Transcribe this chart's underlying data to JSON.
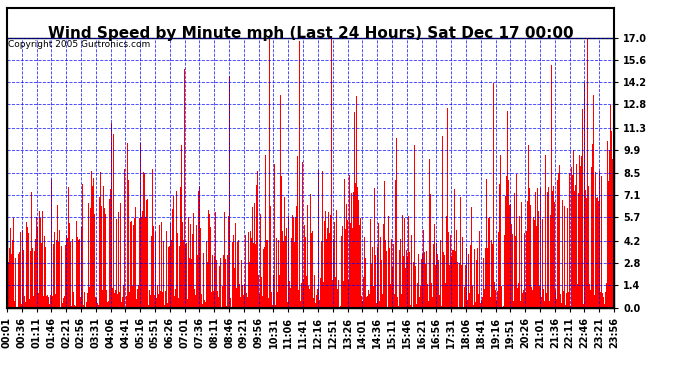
{
  "title": "Wind Speed by Minute mph (Last 24 Hours) Sat Dec 17 00:00",
  "copyright": "Copyright 2005 Gurtronics.com",
  "yticks": [
    0.0,
    1.4,
    2.8,
    4.2,
    5.7,
    7.1,
    8.5,
    9.9,
    11.3,
    12.8,
    14.2,
    15.6,
    17.0
  ],
  "ylim": [
    0.0,
    17.0
  ],
  "xtick_labels": [
    "00:01",
    "00:36",
    "01:11",
    "01:46",
    "02:21",
    "02:56",
    "03:31",
    "04:06",
    "04:41",
    "05:16",
    "05:51",
    "06:26",
    "07:01",
    "07:36",
    "08:11",
    "08:46",
    "09:21",
    "09:56",
    "10:31",
    "11:06",
    "11:41",
    "12:16",
    "12:51",
    "13:26",
    "14:01",
    "14:36",
    "15:11",
    "15:46",
    "16:21",
    "16:56",
    "17:31",
    "18:06",
    "18:41",
    "19:16",
    "19:51",
    "20:26",
    "21:01",
    "21:36",
    "22:11",
    "22:46",
    "23:21",
    "23:56"
  ],
  "bar_color": "#ff0000",
  "bg_color": "#ffffff",
  "grid_color": "#0000ff",
  "title_fontsize": 11,
  "copyright_fontsize": 6.5,
  "tick_fontsize": 7,
  "n_minutes": 1440,
  "seed": 42
}
